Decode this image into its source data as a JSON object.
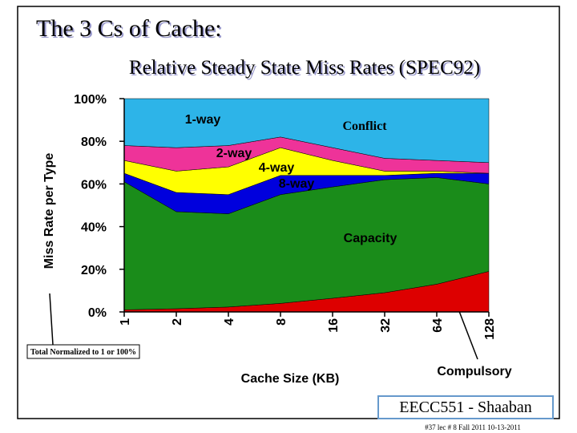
{
  "chart_data": {
    "type": "stacked_area",
    "title": "The 3 Cs of Cache:",
    "subtitle": "Relative Steady State Miss Rates (SPEC92)",
    "y_label": "Miss Rate per Type",
    "x_label": "Cache Size (KB)",
    "annotations": [
      "Conflict",
      "Total Normalized to 1 or 100%"
    ],
    "categories": [
      "1",
      "2",
      "4",
      "8",
      "16",
      "32",
      "64",
      "128"
    ],
    "series": [
      {
        "name": "Compulsory",
        "color": "#dd0000",
        "values": [
          1,
          1.5,
          2.3,
          4,
          6.4,
          9,
          13,
          19
        ]
      },
      {
        "name": "Capacity",
        "color": "#1a8c1a",
        "values": [
          60,
          45.5,
          43.7,
          51,
          52.2,
          53,
          50,
          41
        ]
      },
      {
        "name": "8-way",
        "color": "#0000dd",
        "values": [
          4,
          9,
          9,
          9,
          5.4,
          2,
          2,
          5
        ]
      },
      {
        "name": "4-way",
        "color": "#ffff00",
        "values": [
          6,
          10,
          13,
          13,
          7,
          2,
          1,
          0
        ]
      },
      {
        "name": "2-way",
        "color": "#ee3399",
        "values": [
          7,
          11,
          10,
          5,
          6,
          6,
          5,
          5
        ]
      },
      {
        "name": "1-way",
        "color": "#2db4e8",
        "values": [
          22,
          23,
          22,
          18,
          23,
          28,
          29,
          30
        ]
      }
    ],
    "ylim": [
      0,
      100
    ],
    "yticks": [
      {
        "value": 0,
        "label": "0%"
      },
      {
        "value": 20,
        "label": "20%"
      },
      {
        "value": 40,
        "label": "40%"
      },
      {
        "value": 60,
        "label": "60%"
      },
      {
        "value": 80,
        "label": "80%"
      },
      {
        "value": 100,
        "label": "100%"
      }
    ]
  },
  "footer": {
    "brand": "EECC551 - Shaaban",
    "note": "#37 lec # 8 Fall 2011 10-13-2011"
  }
}
